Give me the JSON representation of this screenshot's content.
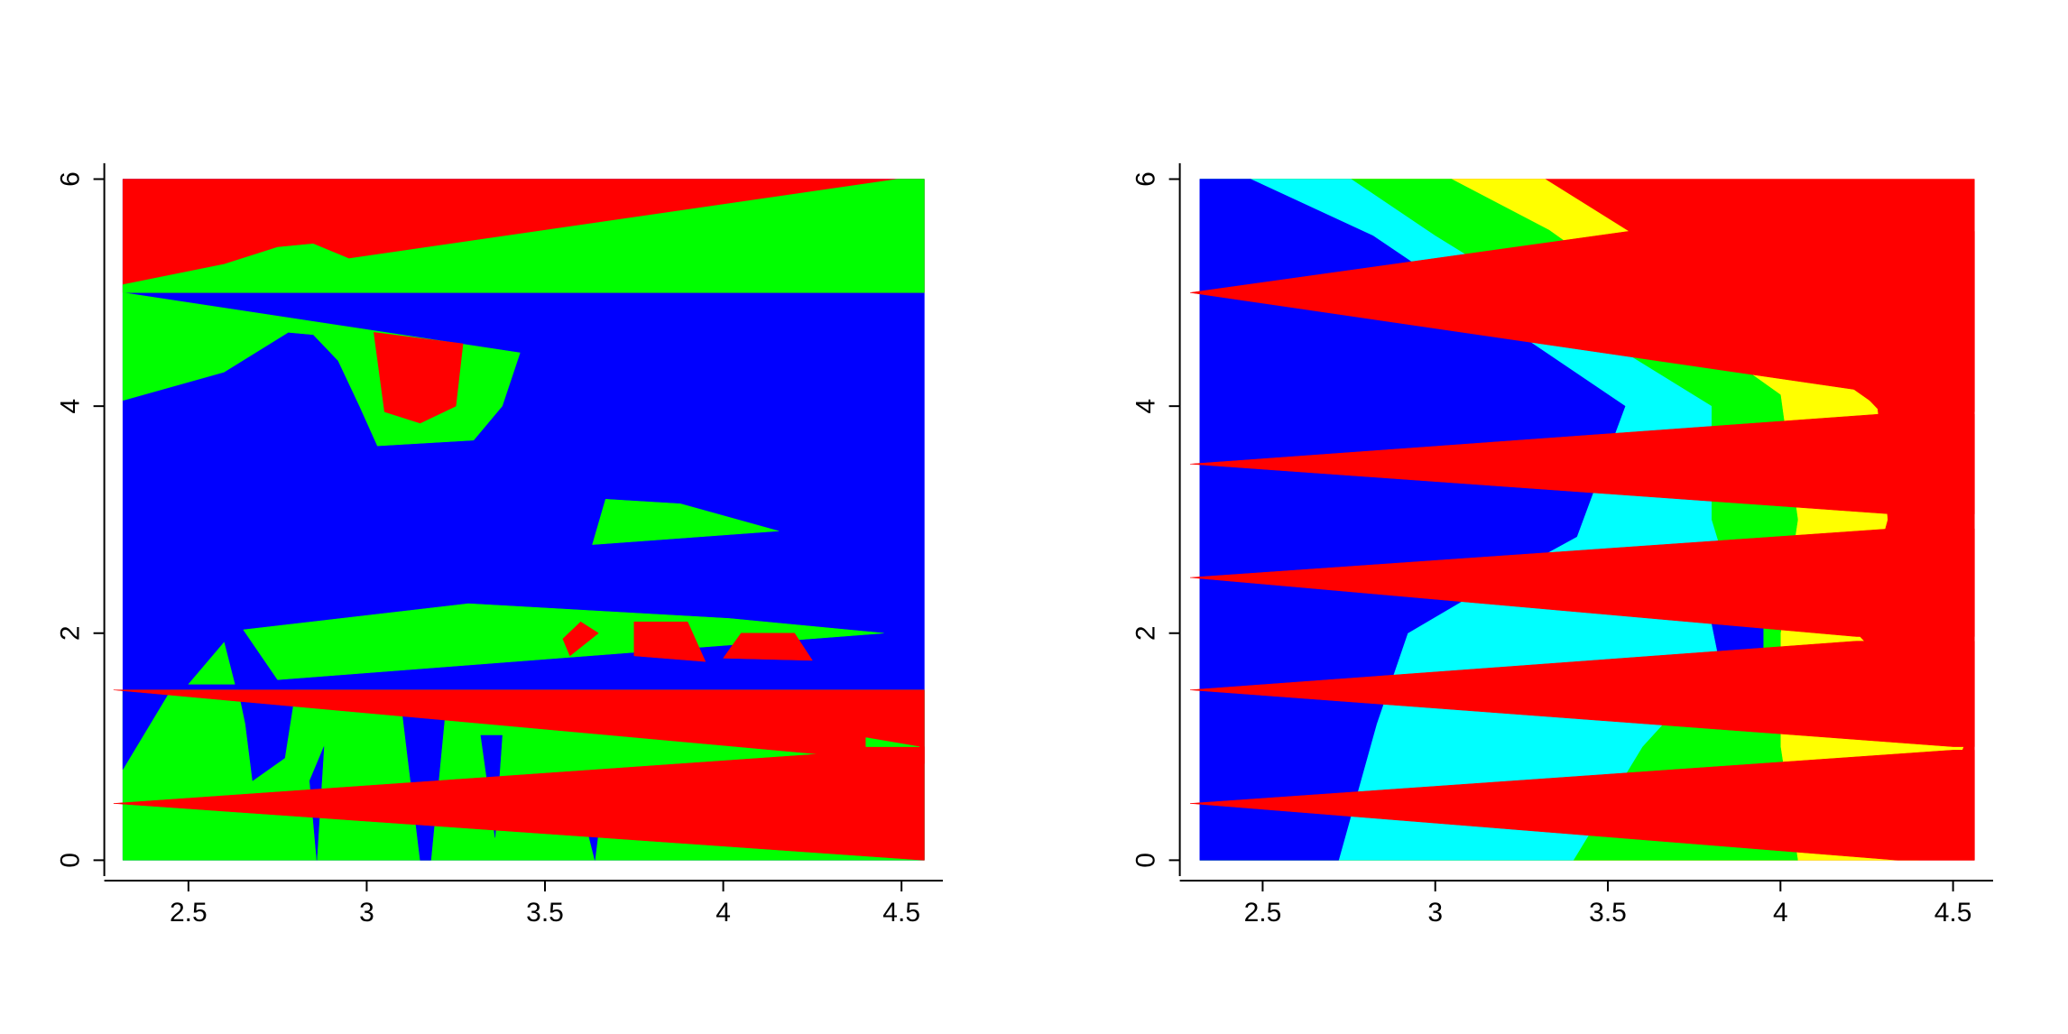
{
  "chart_data": [
    {
      "type": "contour",
      "xlim": [
        2.264,
        4.616
      ],
      "ylim": [
        -0.14,
        6.14
      ],
      "xticks": [
        2.5,
        3,
        3.5,
        4,
        4.5
      ],
      "yticks": [
        0,
        2,
        4,
        6
      ],
      "regions": [
        {
          "color": "#0000ff",
          "points": [
            [
              2.316,
              0
            ],
            [
              4.564,
              0
            ],
            [
              4.564,
              6
            ],
            [
              2.316,
              6
            ]
          ]
        },
        {
          "color": "#ff0000",
          "points": [
            [
              2.316,
              5
            ],
            [
              4.564,
              5
            ],
            [
              4.564,
              6
            ],
            [
              2.316,
              6
            ]
          ]
        },
        {
          "color": "#00ff00",
          "points": [
            [
              2.316,
              5
            ],
            [
              4.564,
              5
            ],
            [
              4.564,
              6
            ],
            [
              4.49,
              6
            ],
            [
              3.5,
              5.55
            ],
            [
              2.95,
              5.3
            ],
            [
              2.85,
              5.43
            ],
            [
              2.75,
              5.4
            ],
            [
              2.6,
              5.25
            ],
            [
              2.316,
              5.07
            ]
          ]
        },
        {
          "color": "#00ff00",
          "points": [
            [
              2.316,
              4.05
            ],
            [
              2.6,
              4.3
            ],
            [
              2.78,
              4.65
            ],
            [
              2.85,
              4.63
            ],
            [
              2.92,
              4.4
            ],
            [
              2.98,
              4.0
            ],
            [
              3.03,
              3.65
            ],
            [
              3.3,
              3.7
            ],
            [
              3.38,
              4.0
            ],
            [
              3.43,
              4.47
            ],
            [
              2.316,
              5.0
            ]
          ]
        },
        {
          "color": "#ff0000",
          "points": [
            [
              3.02,
              4.65
            ],
            [
              3.27,
              4.55
            ],
            [
              3.25,
              4.0
            ],
            [
              3.15,
              3.85
            ],
            [
              3.05,
              3.95
            ]
          ]
        },
        {
          "color": "#00ff00",
          "points": [
            [
              3.633,
              2.78
            ],
            [
              3.67,
              3.18
            ],
            [
              3.88,
              3.14
            ],
            [
              4.155,
              2.9
            ]
          ]
        },
        {
          "color": "#00ff00",
          "points": [
            [
              2.654,
              2.03
            ],
            [
              3.285,
              2.26
            ],
            [
              4.016,
              2.13
            ],
            [
              4.45,
              2.0
            ],
            [
              2.75,
              1.59
            ]
          ]
        },
        {
          "color": "#ff0000",
          "points": [
            [
              3.57,
              1.8
            ],
            [
              3.65,
              2.0
            ],
            [
              3.6,
              2.1
            ],
            [
              3.55,
              1.95
            ]
          ]
        },
        {
          "color": "#ff0000",
          "points": [
            [
              3.75,
              1.8
            ],
            [
              3.95,
              1.75
            ],
            [
              3.9,
              2.1
            ],
            [
              3.75,
              2.1
            ]
          ]
        },
        {
          "color": "#ff0000",
          "points": [
            [
              4.0,
              1.78
            ],
            [
              4.25,
              1.76
            ],
            [
              4.2,
              2.0
            ],
            [
              4.05,
              2.0
            ]
          ]
        },
        {
          "color": "#00ff00",
          "points": [
            [
              2.316,
              0
            ],
            [
              4.564,
              0
            ],
            [
              4.564,
              1.5
            ],
            [
              2.316,
              1.5
            ]
          ]
        },
        {
          "color": "#00ff00",
          "points": [
            [
              2.5,
              1.55
            ],
            [
              2.6,
              1.92
            ],
            [
              2.63,
              1.55
            ]
          ]
        },
        {
          "color": "#0000ff",
          "points": [
            [
              2.316,
              1.5
            ],
            [
              2.45,
              1.5
            ],
            [
              2.316,
              0.8
            ]
          ]
        },
        {
          "color": "#0000ff",
          "points": [
            [
              2.64,
              1.5
            ],
            [
              2.8,
              1.5
            ],
            [
              2.77,
              0.9
            ],
            [
              2.68,
              0.7
            ],
            [
              2.66,
              1.2
            ]
          ]
        },
        {
          "color": "#0000ff",
          "points": [
            [
              2.84,
              0.7
            ],
            [
              2.88,
              1.0
            ],
            [
              2.86,
              0
            ]
          ]
        },
        {
          "color": "#0000ff",
          "points": [
            [
              3.1,
              1.3
            ],
            [
              3.22,
              1.3
            ],
            [
              3.18,
              0
            ],
            [
              3.15,
              0
            ]
          ]
        },
        {
          "color": "#0000ff",
          "points": [
            [
              3.32,
              1.1
            ],
            [
              3.38,
              1.1
            ],
            [
              3.36,
              0.2
            ]
          ]
        },
        {
          "color": "#0000ff",
          "points": [
            [
              3.6,
              0.5
            ],
            [
              3.66,
              0.5
            ],
            [
              3.64,
              0
            ]
          ]
        },
        {
          "color": "#ff0000",
          "points": [
            [
              2.29,
              1.5
            ],
            [
              4.564,
              1.5
            ],
            [
              4.564,
              0.85
            ]
          ]
        },
        {
          "color": "#ff0000",
          "points": [
            [
              2.29,
              0.5
            ],
            [
              4.564,
              1.0
            ],
            [
              4.564,
              0
            ]
          ]
        },
        {
          "color": "#00ff00",
          "points": [
            [
              4.4,
              1.0
            ],
            [
              4.55,
              1.0
            ],
            [
              4.4,
              1.08
            ]
          ]
        }
      ]
    },
    {
      "type": "contour",
      "xlim": [
        2.26,
        4.616
      ],
      "ylim": [
        -0.14,
        6.14
      ],
      "xticks": [
        2.5,
        3,
        3.5,
        4,
        4.5
      ],
      "yticks": [
        0,
        2,
        4,
        6
      ],
      "regions": [
        {
          "color": "#ff0000",
          "points": [
            [
              2.318,
              0
            ],
            [
              4.562,
              0
            ],
            [
              4.562,
              6
            ],
            [
              2.318,
              6
            ]
          ]
        },
        {
          "color": "#ffff00",
          "points": [
            [
              2.318,
              0
            ],
            [
              2.318,
              6
            ],
            [
              3.318,
              6
            ],
            [
              3.56,
              5.54
            ],
            [
              4.28,
              4.0
            ],
            [
              4.31,
              3.0
            ],
            [
              4.22,
              2.0
            ],
            [
              4.53,
              1.0
            ],
            [
              4.4,
              0
            ]
          ]
        },
        {
          "color": "#00ff00",
          "points": [
            [
              2.318,
              0
            ],
            [
              2.318,
              6
            ],
            [
              3.047,
              6
            ],
            [
              3.33,
              5.55
            ],
            [
              4.0,
              4.1
            ],
            [
              4.05,
              3.0
            ],
            [
              4.0,
              2.0
            ],
            [
              4.0,
              1.0
            ],
            [
              4.05,
              0
            ]
          ]
        },
        {
          "color": "#00ffff",
          "points": [
            [
              2.318,
              0
            ],
            [
              2.318,
              6
            ],
            [
              2.756,
              6
            ],
            [
              3.0,
              5.5
            ],
            [
              3.8,
              4.0
            ],
            [
              3.8,
              3.0
            ],
            [
              3.9,
              2.0
            ],
            [
              3.6,
              1.0
            ],
            [
              3.4,
              0
            ]
          ]
        },
        {
          "color": "#0000ff",
          "points": [
            [
              2.318,
              0
            ],
            [
              2.318,
              6
            ],
            [
              2.465,
              6
            ],
            [
              2.82,
              5.5
            ],
            [
              3.55,
              4.0
            ],
            [
              3.41,
              2.85
            ],
            [
              3.2,
              2.5
            ],
            [
              2.92,
              2.0
            ],
            [
              2.83,
              1.2
            ],
            [
              2.72,
              0
            ]
          ]
        },
        {
          "color": "#0000ff",
          "points": [
            [
              3.82,
              1.8
            ],
            [
              3.95,
              1.8
            ],
            [
              3.95,
              2.1
            ],
            [
              3.8,
              2.1
            ]
          ]
        },
        {
          "color": "#ff0000",
          "points": [
            [
              2.29,
              5
            ],
            [
              3.56,
              5.54
            ],
            [
              4.562,
              5.54
            ],
            [
              4.562,
              3.95
            ],
            [
              4.29,
              3.95
            ],
            [
              4.23,
              4.14
            ]
          ]
        },
        {
          "color": "#ff0000",
          "points": [
            [
              2.29,
              3.49
            ],
            [
              4.29,
              3.93
            ],
            [
              4.562,
              3.93
            ],
            [
              4.562,
              3.05
            ],
            [
              4.32,
              3.05
            ]
          ]
        },
        {
          "color": "#ff0000",
          "points": [
            [
              2.29,
              2.49
            ],
            [
              4.32,
              2.92
            ],
            [
              4.562,
              2.92
            ],
            [
              4.562,
              1.97
            ],
            [
              4.22,
              1.97
            ]
          ]
        },
        {
          "color": "#ff0000",
          "points": [
            [
              2.29,
              1.5
            ],
            [
              4.22,
              1.93
            ],
            [
              4.562,
              1.93
            ],
            [
              4.562,
              1.0
            ],
            [
              4.5,
              1.0
            ]
          ]
        },
        {
          "color": "#ff0000",
          "points": [
            [
              2.29,
              0.5
            ],
            [
              4.5,
              0.97
            ],
            [
              4.562,
              0.97
            ],
            [
              4.562,
              0
            ],
            [
              4.34,
              0
            ]
          ]
        }
      ]
    }
  ]
}
